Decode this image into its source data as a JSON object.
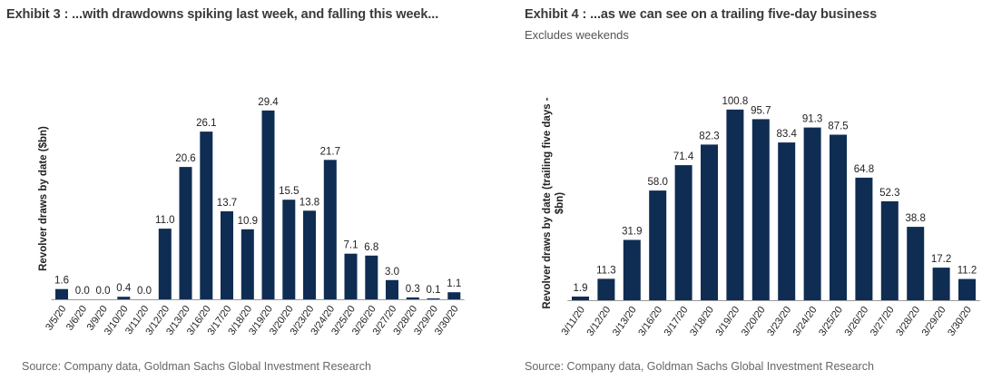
{
  "chart_data": [
    {
      "type": "bar",
      "title": "Exhibit 3 : ...with drawdowns spiking last week, and falling this week...",
      "subtitle": "",
      "xlabel": "",
      "ylabel": "Revolver draws by date ($bn)",
      "categories": [
        "3/5/20",
        "3/6/20",
        "3/9/20",
        "3/10/20",
        "3/11/20",
        "3/12/20",
        "3/13/20",
        "3/16/20",
        "3/17/20",
        "3/18/20",
        "3/19/20",
        "3/20/20",
        "3/23/20",
        "3/24/20",
        "3/25/20",
        "3/26/20",
        "3/27/20",
        "3/28/20",
        "3/29/20",
        "3/30/20"
      ],
      "values": [
        1.6,
        0.0,
        0.0,
        0.4,
        0.0,
        11.0,
        20.6,
        26.1,
        13.7,
        10.9,
        29.4,
        15.5,
        13.8,
        21.7,
        7.1,
        6.8,
        3.0,
        0.3,
        0.1,
        1.1
      ],
      "labels": [
        "1.6",
        "0.0",
        "0.0",
        "0.4",
        "0.0",
        "11.0",
        "20.6",
        "26.1",
        "13.7",
        "10.9",
        "29.4",
        "15.5",
        "13.8",
        "21.7",
        "7.1",
        "6.8",
        "3.0",
        "0.3",
        "0.1",
        "1.1"
      ],
      "ylim": [
        0,
        30
      ],
      "grid": false,
      "bar_color": "#0f2d52",
      "source": "Source: Company data, Goldman Sachs Global Investment Research"
    },
    {
      "type": "bar",
      "title": "Exhibit 4 : ...as we can see on a trailing five-day business",
      "subtitle": "Excludes weekends",
      "xlabel": "",
      "ylabel_lines": [
        "Revolver draws by date (trailing five days -",
        "$bn)"
      ],
      "ylabel": "Revolver draws by date (trailing five days - $bn)",
      "categories": [
        "3/11/20",
        "3/12/20",
        "3/13/20",
        "3/16/20",
        "3/17/20",
        "3/18/20",
        "3/19/20",
        "3/20/20",
        "3/23/20",
        "3/24/20",
        "3/25/20",
        "3/26/20",
        "3/27/20",
        "3/28/20",
        "3/29/20",
        "3/30/20"
      ],
      "values": [
        1.9,
        11.3,
        31.9,
        58.0,
        71.4,
        82.3,
        100.8,
        95.7,
        83.4,
        91.3,
        87.5,
        64.8,
        52.3,
        38.8,
        17.2,
        11.2
      ],
      "labels": [
        "1.9",
        "11.3",
        "31.9",
        "58.0",
        "71.4",
        "82.3",
        "100.8",
        "95.7",
        "83.4",
        "91.3",
        "87.5",
        "64.8",
        "52.3",
        "38.8",
        "17.2",
        "11.2"
      ],
      "ylim": [
        0,
        102
      ],
      "grid": false,
      "bar_color": "#0f2d52",
      "source": "Source: Company data, Goldman Sachs Global Investment Research"
    }
  ]
}
